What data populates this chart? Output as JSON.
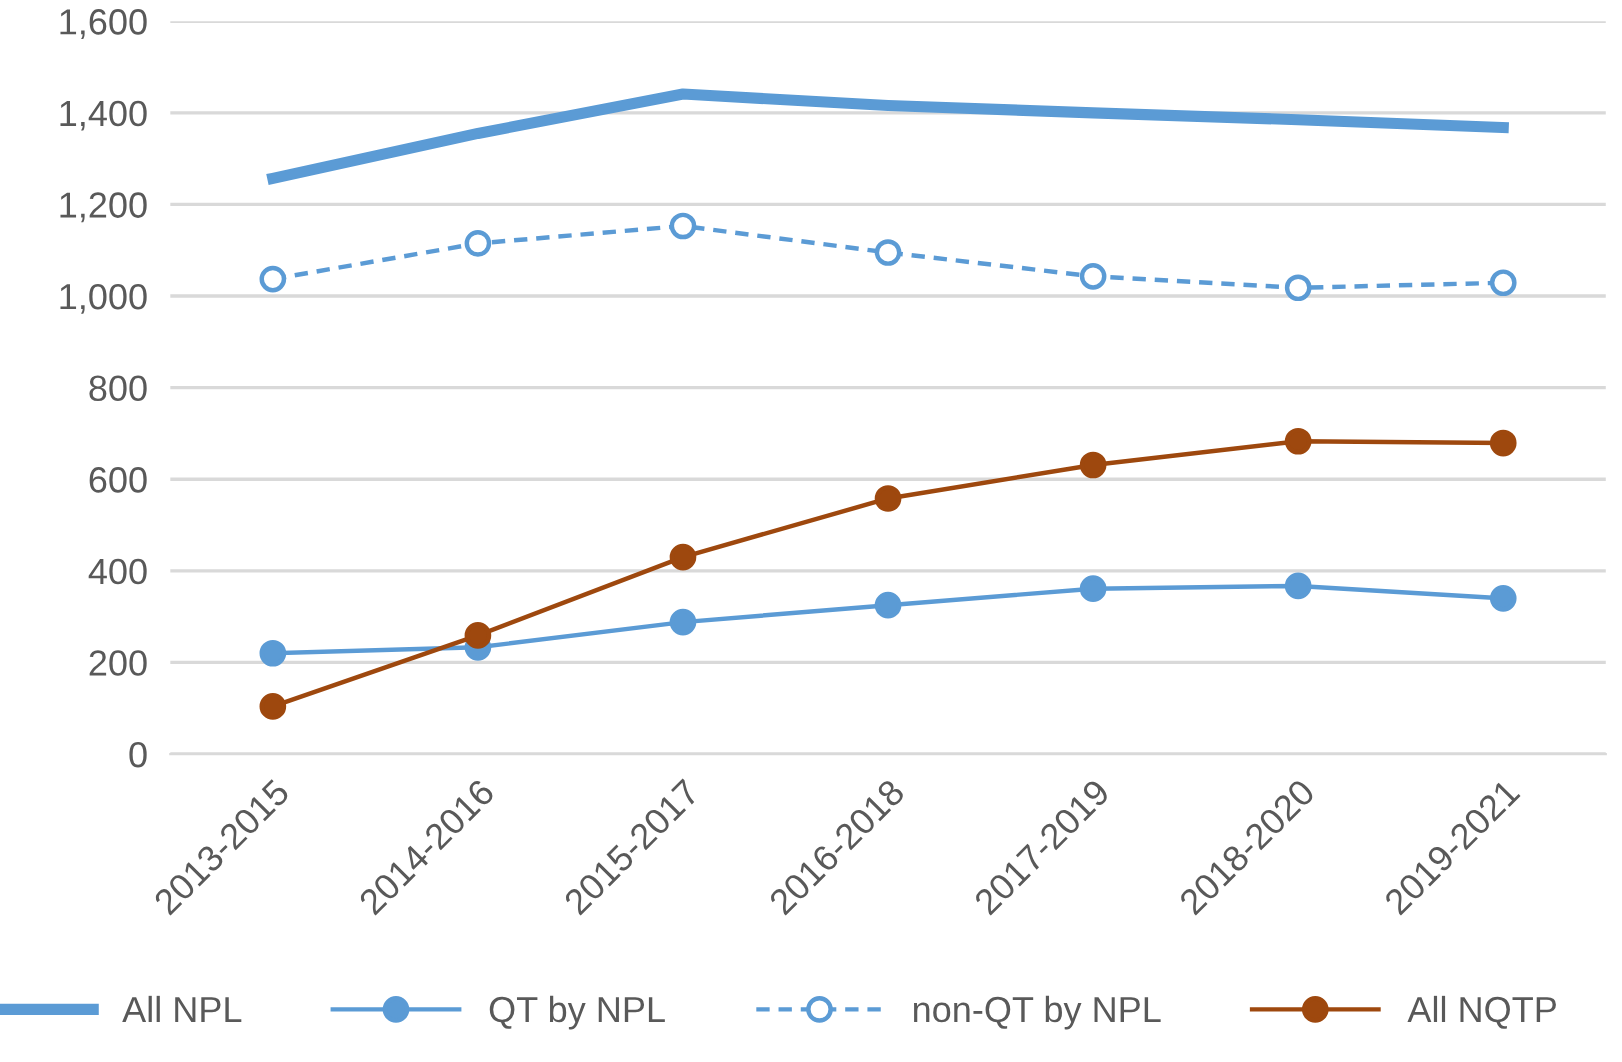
{
  "chart_data": {
    "type": "line",
    "categories": [
      "2013-2015",
      "2014-2016",
      "2015-2017",
      "2016-2018",
      "2017-2019",
      "2018-2020",
      "2019-2021"
    ],
    "series": [
      {
        "name": "All NPL",
        "color": "#5b9bd5",
        "values": [
          1257,
          1355,
          1441,
          1416,
          1400,
          1385,
          1368
        ],
        "marker": "none",
        "line_style": "solid"
      },
      {
        "name": "QT by NPL",
        "color": "#5b9bd5",
        "values": [
          220,
          233,
          288,
          325,
          361,
          367,
          340
        ],
        "marker": "circle",
        "line_style": "solid"
      },
      {
        "name": "non-QT by NPL",
        "color": "#5b9bd5",
        "values": [
          1037,
          1115,
          1153,
          1095,
          1043,
          1018,
          1029
        ],
        "marker": "circle",
        "line_style": "dashed"
      },
      {
        "name": "All NQTP",
        "color": "#9e480e",
        "values": [
          104,
          259,
          430,
          558,
          631,
          683,
          679
        ],
        "marker": "circle",
        "line_style": "solid"
      }
    ],
    "ylim": [
      0,
      1600
    ],
    "yticks": [
      {
        "value": 0,
        "label": "0"
      },
      {
        "value": 200,
        "label": "200"
      },
      {
        "value": 400,
        "label": "400"
      },
      {
        "value": 600,
        "label": "600"
      },
      {
        "value": 800,
        "label": "800"
      },
      {
        "value": 1000,
        "label": "1,000"
      },
      {
        "value": 1200,
        "label": "1,200"
      },
      {
        "value": 1400,
        "label": "1,400"
      },
      {
        "value": 1600,
        "label": "1,600"
      }
    ],
    "grid": "y",
    "legend": "bottom"
  }
}
